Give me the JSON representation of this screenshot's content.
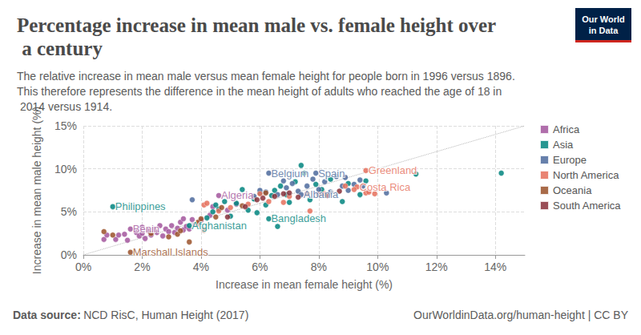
{
  "chart_data": {
    "type": "scatter",
    "title": "Percentage increase in mean male vs. female height over a century",
    "subtitle": "The relative increase in mean male versus mean female height for people born in 1996 versus 1896. This therefore represents the difference in the mean height of adults who reached the age of 18 in 2014 versus 1914.",
    "x_label": "Increase in mean female height (%)",
    "y_label": "Increase in mean male height (%)",
    "xlim": [
      0,
      15
    ],
    "ylim": [
      0,
      15
    ],
    "xticks": [
      {
        "value": 0,
        "label": "0%"
      },
      {
        "value": 2,
        "label": "2%"
      },
      {
        "value": 4,
        "label": "4%"
      },
      {
        "value": 6,
        "label": "6%"
      },
      {
        "value": 8,
        "label": "8%"
      },
      {
        "value": 10,
        "label": "10%"
      },
      {
        "value": 12,
        "label": "12%"
      },
      {
        "value": 14,
        "label": "14%"
      }
    ],
    "yticks": [
      {
        "value": 0,
        "label": "0%"
      },
      {
        "value": 5,
        "label": "5%"
      },
      {
        "value": 10,
        "label": "10%"
      },
      {
        "value": 15,
        "label": "15%"
      }
    ],
    "grid": true,
    "legend": "right",
    "series": [
      {
        "type": "line",
        "line_style": "dotted",
        "color": "#b3b3b3",
        "x": [
          0,
          15
        ],
        "values": [
          0,
          15
        ]
      },
      {
        "name": "Africa",
        "color": "#a2559c",
        "x": [
          0.7,
          0.8,
          1.1,
          1.2,
          1.4,
          1.5,
          1.6,
          1.8,
          1.9,
          2.0,
          2.1,
          2.2,
          2.3,
          2.4,
          2.5,
          2.6,
          2.7,
          2.8,
          2.9,
          3.0,
          3.1,
          3.2,
          3.3,
          3.4,
          3.5,
          3.6,
          3.7,
          3.8,
          4.0,
          4.3,
          4.6,
          4.9,
          5.2,
          3.4,
          2.0,
          4.4
        ],
        "values": [
          1.8,
          2.3,
          1.8,
          2.3,
          2.4,
          1.7,
          3.0,
          2.6,
          2.2,
          2.5,
          1.9,
          2.8,
          2.3,
          3.0,
          2.6,
          3.4,
          2.2,
          3.0,
          2.7,
          3.4,
          2.6,
          3.1,
          3.8,
          2.9,
          3.3,
          3.0,
          4.1,
          3.5,
          4.0,
          4.6,
          6.9,
          5.2,
          5.9,
          4.2,
          3.2,
          5.6
        ]
      },
      {
        "name": "Asia",
        "color": "#00847e",
        "x": [
          1.0,
          3.6,
          4.2,
          4.4,
          4.5,
          4.6,
          5.0,
          5.2,
          5.4,
          5.6,
          5.8,
          6.0,
          6.2,
          6.3,
          6.4,
          6.5,
          6.6,
          6.7,
          6.9,
          7.2,
          7.4,
          7.5,
          7.7,
          7.9,
          8.1,
          8.4,
          8.8,
          9.0,
          9.4,
          9.6,
          11.3,
          14.2,
          5.9,
          4.8,
          7.0
        ],
        "values": [
          5.6,
          3.4,
          4.3,
          5.0,
          5.8,
          5.3,
          4.5,
          6.0,
          7.6,
          5.2,
          6.5,
          7.2,
          5.8,
          4.2,
          6.9,
          7.5,
          3.3,
          8.0,
          7.0,
          8.5,
          10.4,
          9.5,
          6.4,
          8.2,
          7.6,
          8.8,
          6.2,
          8.3,
          7.0,
          8.6,
          9.4,
          9.5,
          4.9,
          6.2,
          6.1
        ]
      },
      {
        "name": "Europe",
        "color": "#4c6a9c",
        "x": [
          3.7,
          5.8,
          6.2,
          6.3,
          6.6,
          6.9,
          7.1,
          7.3,
          7.4,
          7.6,
          7.8,
          7.9,
          8.0,
          8.2,
          8.6,
          8.8,
          9.0,
          9.2,
          9.4,
          8.4,
          10.3,
          6.0,
          6.8,
          8.9,
          9.5
        ],
        "values": [
          6.4,
          6.8,
          7.3,
          9.5,
          7.0,
          7.8,
          8.3,
          7.4,
          7.0,
          8.0,
          8.8,
          9.5,
          7.6,
          8.5,
          9.1,
          8.0,
          7.5,
          8.2,
          8.7,
          7.3,
          7.2,
          7.5,
          8.6,
          9.0,
          8.0
        ]
      },
      {
        "name": "North America",
        "color": "#e56e5a",
        "x": [
          9.6,
          9.3,
          9.6,
          9.7,
          9.9,
          8.9,
          7.7,
          6.8,
          5.6,
          4.1,
          4.2,
          5.0,
          6.3,
          7.0,
          8.2,
          3.9,
          4.6,
          6.0,
          9.2
        ],
        "values": [
          9.8,
          7.9,
          7.2,
          7.3,
          7.1,
          8.0,
          5.1,
          6.1,
          5.9,
          5.8,
          6.0,
          5.5,
          6.2,
          6.8,
          7.1,
          3.6,
          5.1,
          7.1,
          7.6
        ]
      },
      {
        "name": "Oceania",
        "color": "#9a5129",
        "x": [
          0.7,
          1.6,
          2.3,
          2.9,
          3.2,
          3.6,
          3.9,
          4.1,
          4.0,
          4.5,
          5.4,
          6.2,
          4.7,
          1.0,
          3.3
        ],
        "values": [
          2.7,
          0.3,
          2.5,
          2.1,
          2.4,
          1.5,
          3.8,
          2.9,
          4.2,
          4.4,
          5.7,
          7.2,
          5.5,
          2.3,
          2.8
        ]
      },
      {
        "name": "South America",
        "color": "#883039",
        "x": [
          6.1,
          6.5,
          7.0,
          7.3,
          7.6,
          8.0,
          8.3,
          5.9,
          6.8,
          8.7,
          5.5,
          4.9
        ],
        "values": [
          6.6,
          6.8,
          7.2,
          6.7,
          7.1,
          7.0,
          6.9,
          6.4,
          7.1,
          7.4,
          5.6,
          4.4
        ]
      }
    ],
    "annotations": [
      {
        "text": "Philippines",
        "series": "Asia",
        "x": 1.0,
        "y": 5.6
      },
      {
        "text": "Benin",
        "series": "Africa",
        "x": 1.6,
        "y": 3.0
      },
      {
        "text": "Marshall Islands",
        "series": "Oceania",
        "x": 1.6,
        "y": 0.3
      },
      {
        "text": "Afghanistan",
        "series": "Asia",
        "x": 3.6,
        "y": 3.4
      },
      {
        "text": "Algeria",
        "series": "Africa",
        "x": 4.6,
        "y": 6.9
      },
      {
        "text": "Bangladesh",
        "series": "Asia",
        "x": 6.3,
        "y": 4.2
      },
      {
        "text": "Belgium",
        "series": "Europe",
        "x": 6.3,
        "y": 9.5
      },
      {
        "text": "Spain",
        "series": "Europe",
        "x": 7.9,
        "y": 9.5
      },
      {
        "text": "Albania",
        "series": "Europe",
        "x": 7.4,
        "y": 7.0
      },
      {
        "text": "Greenland",
        "series": "North America",
        "x": 9.6,
        "y": 9.8
      },
      {
        "text": "Costa Rica",
        "series": "North America",
        "x": 9.3,
        "y": 7.9
      }
    ],
    "source_label": "Data source:",
    "source": "NCD RisC, Human Height (2017)",
    "footer_right": "OurWorldinData.org/human-height | CC BY",
    "logo": [
      "Our World",
      "in Data"
    ]
  }
}
